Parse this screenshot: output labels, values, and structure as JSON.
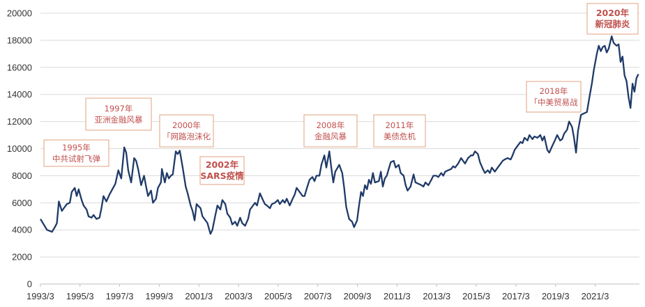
{
  "chart_data": {
    "type": "line",
    "title": "",
    "xlabel": "",
    "ylabel": "",
    "ylim": [
      0,
      20000
    ],
    "yticks": [
      0,
      2000,
      4000,
      6000,
      8000,
      10000,
      12000,
      14000,
      16000,
      18000,
      20000
    ],
    "x_ticks": [
      "1993/3",
      "1995/3",
      "1997/3",
      "1999/3",
      "2001/3",
      "2003/3",
      "2005/3",
      "2007/3",
      "2009/3",
      "2011/3",
      "2013/3",
      "2015/3",
      "2017/3",
      "2019/3",
      "2021/3"
    ],
    "grid": "horizontal",
    "line_color": "#1f3a68",
    "annotation_color": "#c0504d",
    "series": [
      {
        "values": [
          [
            1993.17,
            4800
          ],
          [
            1993.5,
            4000
          ],
          [
            1993.75,
            3850
          ],
          [
            1993.9,
            4200
          ],
          [
            1994.0,
            4500
          ],
          [
            1994.1,
            6100
          ],
          [
            1994.25,
            5400
          ],
          [
            1994.5,
            5900
          ],
          [
            1994.65,
            6000
          ],
          [
            1994.75,
            6800
          ],
          [
            1994.9,
            7100
          ],
          [
            1995.0,
            6500
          ],
          [
            1995.1,
            7000
          ],
          [
            1995.25,
            6200
          ],
          [
            1995.35,
            5800
          ],
          [
            1995.5,
            5500
          ],
          [
            1995.6,
            5000
          ],
          [
            1995.75,
            4900
          ],
          [
            1995.85,
            5100
          ],
          [
            1996.0,
            4800
          ],
          [
            1996.15,
            4900
          ],
          [
            1996.25,
            5600
          ],
          [
            1996.35,
            6500
          ],
          [
            1996.5,
            6100
          ],
          [
            1996.65,
            6600
          ],
          [
            1996.8,
            7000
          ],
          [
            1996.95,
            7400
          ],
          [
            1997.1,
            8400
          ],
          [
            1997.25,
            7800
          ],
          [
            1997.4,
            10100
          ],
          [
            1997.5,
            9700
          ],
          [
            1997.6,
            8400
          ],
          [
            1997.75,
            7500
          ],
          [
            1997.9,
            9300
          ],
          [
            1998.0,
            9100
          ],
          [
            1998.1,
            8500
          ],
          [
            1998.25,
            7300
          ],
          [
            1998.4,
            8000
          ],
          [
            1998.5,
            7200
          ],
          [
            1998.6,
            6500
          ],
          [
            1998.75,
            6900
          ],
          [
            1998.85,
            6000
          ],
          [
            1999.0,
            6300
          ],
          [
            1999.1,
            7100
          ],
          [
            1999.25,
            7500
          ],
          [
            1999.3,
            8500
          ],
          [
            1999.45,
            7500
          ],
          [
            1999.55,
            8200
          ],
          [
            1999.65,
            7800
          ],
          [
            1999.75,
            8000
          ],
          [
            1999.85,
            8100
          ],
          [
            2000.0,
            9800
          ],
          [
            2000.1,
            9600
          ],
          [
            2000.2,
            9850
          ],
          [
            2000.35,
            8600
          ],
          [
            2000.5,
            7200
          ],
          [
            2000.6,
            6700
          ],
          [
            2000.75,
            5800
          ],
          [
            2000.85,
            5400
          ],
          [
            2000.95,
            4700
          ],
          [
            2001.05,
            5900
          ],
          [
            2001.25,
            5600
          ],
          [
            2001.35,
            5000
          ],
          [
            2001.5,
            4700
          ],
          [
            2001.6,
            4500
          ],
          [
            2001.75,
            3700
          ],
          [
            2001.85,
            4000
          ],
          [
            2002.0,
            5100
          ],
          [
            2002.1,
            5800
          ],
          [
            2002.25,
            5500
          ],
          [
            2002.35,
            6200
          ],
          [
            2002.5,
            5900
          ],
          [
            2002.6,
            5200
          ],
          [
            2002.75,
            4900
          ],
          [
            2002.85,
            4400
          ],
          [
            2003.0,
            4600
          ],
          [
            2003.1,
            4300
          ],
          [
            2003.25,
            4900
          ],
          [
            2003.35,
            4500
          ],
          [
            2003.5,
            4300
          ],
          [
            2003.65,
            4800
          ],
          [
            2003.75,
            5500
          ],
          [
            2003.9,
            5800
          ],
          [
            2004.0,
            6000
          ],
          [
            2004.1,
            5800
          ],
          [
            2004.25,
            6700
          ],
          [
            2004.4,
            6200
          ],
          [
            2004.5,
            5900
          ],
          [
            2004.6,
            5800
          ],
          [
            2004.75,
            5600
          ],
          [
            2004.85,
            5900
          ],
          [
            2005.0,
            6000
          ],
          [
            2005.15,
            6200
          ],
          [
            2005.25,
            5900
          ],
          [
            2005.4,
            6200
          ],
          [
            2005.5,
            6000
          ],
          [
            2005.6,
            6300
          ],
          [
            2005.75,
            5800
          ],
          [
            2005.9,
            6300
          ],
          [
            2006.0,
            6600
          ],
          [
            2006.1,
            7100
          ],
          [
            2006.25,
            6800
          ],
          [
            2006.4,
            6500
          ],
          [
            2006.5,
            6500
          ],
          [
            2006.6,
            7000
          ],
          [
            2006.75,
            7700
          ],
          [
            2006.9,
            7900
          ],
          [
            2007.0,
            7600
          ],
          [
            2007.1,
            8000
          ],
          [
            2007.25,
            8000
          ],
          [
            2007.35,
            8800
          ],
          [
            2007.5,
            9500
          ],
          [
            2007.6,
            8600
          ],
          [
            2007.75,
            9800
          ],
          [
            2007.85,
            8600
          ],
          [
            2007.95,
            7500
          ],
          [
            2008.05,
            8300
          ],
          [
            2008.25,
            8800
          ],
          [
            2008.4,
            8200
          ],
          [
            2008.5,
            7100
          ],
          [
            2008.6,
            5700
          ],
          [
            2008.75,
            4800
          ],
          [
            2008.9,
            4600
          ],
          [
            2009.0,
            4200
          ],
          [
            2009.15,
            4700
          ],
          [
            2009.25,
            5800
          ],
          [
            2009.35,
            6800
          ],
          [
            2009.45,
            6500
          ],
          [
            2009.55,
            7300
          ],
          [
            2009.65,
            7000
          ],
          [
            2009.75,
            7700
          ],
          [
            2009.85,
            7400
          ],
          [
            2009.95,
            8200
          ],
          [
            2010.05,
            7500
          ],
          [
            2010.25,
            7600
          ],
          [
            2010.35,
            8300
          ],
          [
            2010.45,
            7200
          ],
          [
            2010.55,
            7800
          ],
          [
            2010.65,
            8000
          ],
          [
            2010.75,
            8500
          ],
          [
            2010.85,
            9000
          ],
          [
            2011.0,
            9100
          ],
          [
            2011.1,
            8600
          ],
          [
            2011.25,
            8800
          ],
          [
            2011.35,
            8200
          ],
          [
            2011.5,
            8000
          ],
          [
            2011.6,
            7300
          ],
          [
            2011.7,
            6900
          ],
          [
            2011.85,
            7200
          ],
          [
            2012.0,
            8100
          ],
          [
            2012.1,
            7500
          ],
          [
            2012.25,
            7400
          ],
          [
            2012.4,
            7300
          ],
          [
            2012.5,
            7200
          ],
          [
            2012.6,
            7500
          ],
          [
            2012.75,
            7300
          ],
          [
            2012.9,
            7700
          ],
          [
            2013.0,
            8000
          ],
          [
            2013.15,
            8000
          ],
          [
            2013.25,
            7900
          ],
          [
            2013.4,
            8200
          ],
          [
            2013.5,
            8000
          ],
          [
            2013.6,
            8300
          ],
          [
            2013.75,
            8400
          ],
          [
            2013.9,
            8500
          ],
          [
            2014.0,
            8700
          ],
          [
            2014.1,
            8600
          ],
          [
            2014.25,
            8900
          ],
          [
            2014.4,
            9300
          ],
          [
            2014.5,
            9100
          ],
          [
            2014.6,
            8900
          ],
          [
            2014.75,
            9300
          ],
          [
            2014.9,
            9500
          ],
          [
            2015.0,
            9500
          ],
          [
            2015.1,
            9800
          ],
          [
            2015.25,
            9600
          ],
          [
            2015.35,
            9000
          ],
          [
            2015.5,
            8500
          ],
          [
            2015.6,
            8200
          ],
          [
            2015.75,
            8400
          ],
          [
            2015.85,
            8200
          ],
          [
            2015.95,
            8600
          ],
          [
            2016.1,
            8300
          ],
          [
            2016.25,
            8600
          ],
          [
            2016.4,
            8900
          ],
          [
            2016.5,
            9100
          ],
          [
            2016.6,
            9200
          ],
          [
            2016.75,
            9300
          ],
          [
            2016.9,
            9200
          ],
          [
            2017.0,
            9500
          ],
          [
            2017.1,
            9900
          ],
          [
            2017.25,
            10200
          ],
          [
            2017.4,
            10500
          ],
          [
            2017.5,
            10400
          ],
          [
            2017.6,
            10800
          ],
          [
            2017.75,
            10600
          ],
          [
            2017.85,
            11000
          ],
          [
            2018.0,
            10700
          ],
          [
            2018.1,
            10900
          ],
          [
            2018.25,
            10800
          ],
          [
            2018.4,
            11000
          ],
          [
            2018.5,
            10600
          ],
          [
            2018.6,
            10900
          ],
          [
            2018.75,
            9900
          ],
          [
            2018.85,
            9700
          ],
          [
            2019.0,
            10200
          ],
          [
            2019.1,
            10500
          ],
          [
            2019.25,
            11000
          ],
          [
            2019.4,
            10600
          ],
          [
            2019.5,
            10700
          ],
          [
            2019.6,
            11100
          ],
          [
            2019.75,
            11400
          ],
          [
            2019.85,
            12000
          ],
          [
            2020.0,
            11600
          ],
          [
            2020.1,
            10800
          ],
          [
            2020.2,
            9700
          ],
          [
            2020.3,
            11300
          ],
          [
            2020.45,
            12500
          ],
          [
            2020.6,
            12600
          ],
          [
            2020.75,
            12700
          ],
          [
            2020.9,
            14000
          ],
          [
            2021.0,
            14800
          ],
          [
            2021.1,
            15800
          ],
          [
            2021.25,
            17000
          ],
          [
            2021.35,
            17600
          ],
          [
            2021.45,
            17200
          ],
          [
            2021.55,
            17500
          ],
          [
            2021.65,
            17600
          ],
          [
            2021.75,
            17100
          ],
          [
            2021.85,
            17400
          ],
          [
            2022.0,
            18300
          ],
          [
            2022.1,
            17800
          ],
          [
            2022.25,
            17600
          ],
          [
            2022.35,
            17700
          ],
          [
            2022.45,
            16400
          ],
          [
            2022.55,
            16800
          ],
          [
            2022.65,
            15400
          ],
          [
            2022.75,
            15000
          ],
          [
            2022.85,
            13800
          ],
          [
            2022.95,
            13000
          ],
          [
            2023.05,
            14800
          ],
          [
            2023.15,
            14200
          ],
          [
            2023.25,
            15200
          ],
          [
            2023.35,
            15500
          ]
        ]
      }
    ],
    "annotations": [
      {
        "lines": [
          "1995年",
          "中共试射飞弹"
        ],
        "bold": false
      },
      {
        "lines": [
          "1997年",
          "亚洲金融风暴"
        ],
        "bold": false
      },
      {
        "lines": [
          "2000年",
          "「网路泡沫化"
        ],
        "bold": false
      },
      {
        "lines": [
          "2002年",
          "SARS疫情"
        ],
        "bold": true
      },
      {
        "lines": [
          "2008年",
          "金融风暴"
        ],
        "bold": false
      },
      {
        "lines": [
          "2011年",
          "美债危机"
        ],
        "bold": false
      },
      {
        "lines": [
          "2018年",
          "「中美贸易战"
        ],
        "bold": false
      },
      {
        "lines": [
          "2020年",
          "新冠肺炎"
        ],
        "bold": true
      }
    ]
  }
}
